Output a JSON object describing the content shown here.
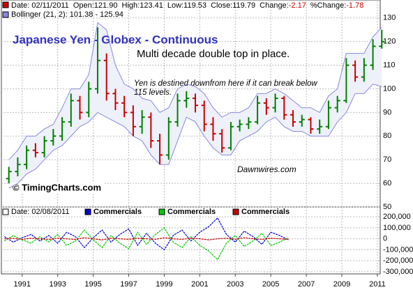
{
  "chart_data": [
    {
      "type": "ohlc",
      "title": "Japanese Yen - Globex - Continuous",
      "annotations": [
        "Multi decade double top in place.",
        "Yen is destined downfrom here if it can break below",
        "115 levels.",
        "Dawnwires.com",
        "© TimingCharts.com"
      ],
      "quote": [
        "Date: 02/11/2011",
        "Open:121.90",
        "High:123.41",
        "Low:119.53",
        "Close:119.79",
        "Change:"
      ],
      "change": "-2.17",
      "pct_change_label": "%Change:",
      "pct_change": "-1.78",
      "bands_label": "Bollinger (21, 2): 101.38 - 125.94",
      "x": [
        1990.0,
        1990.5,
        1991.0,
        1991.5,
        1992.0,
        1992.5,
        1993.0,
        1993.5,
        1994.0,
        1994.5,
        1995.0,
        1995.5,
        1996.0,
        1996.5,
        1997.0,
        1997.5,
        1998.0,
        1998.5,
        1999.0,
        1999.5,
        2000.0,
        2000.5,
        2001.0,
        2001.5,
        2002.0,
        2002.5,
        2003.0,
        2003.5,
        2004.0,
        2004.5,
        2005.0,
        2005.5,
        2006.0,
        2006.5,
        2007.0,
        2007.5,
        2008.0,
        2008.5,
        2009.0,
        2009.5,
        2010.0,
        2010.5,
        2011.0
      ],
      "open": [
        62,
        65,
        68,
        74,
        73,
        78,
        80,
        86,
        95,
        90,
        100,
        112,
        98,
        94,
        90,
        84,
        88,
        78,
        72,
        86,
        95,
        96,
        93,
        85,
        81,
        75,
        84,
        85,
        86,
        94,
        92,
        96,
        89,
        86,
        87,
        83,
        84,
        92,
        95,
        110,
        105,
        110,
        118
      ],
      "high": [
        67,
        71,
        76,
        77,
        80,
        83,
        88,
        98,
        97,
        103,
        126,
        115,
        100,
        97,
        93,
        91,
        90,
        81,
        88,
        98,
        99,
        98,
        95,
        88,
        83,
        86,
        87,
        88,
        97,
        96,
        98,
        97,
        91,
        89,
        88,
        87,
        95,
        97,
        113,
        112,
        113,
        121,
        125
      ],
      "low": [
        60,
        63,
        66,
        71,
        71,
        76,
        78,
        84,
        87,
        88,
        98,
        95,
        91,
        88,
        80,
        81,
        75,
        68,
        70,
        84,
        92,
        90,
        82,
        78,
        73,
        74,
        82,
        83,
        85,
        89,
        90,
        87,
        84,
        84,
        81,
        81,
        83,
        90,
        94,
        103,
        103,
        108,
        117
      ],
      "close": [
        65,
        68,
        74,
        73,
        78,
        80,
        86,
        95,
        90,
        100,
        112,
        98,
        94,
        90,
        84,
        88,
        78,
        72,
        86,
        95,
        96,
        93,
        85,
        81,
        75,
        84,
        85,
        86,
        94,
        92,
        96,
        89,
        86,
        87,
        83,
        84,
        92,
        95,
        110,
        105,
        110,
        118,
        120
      ],
      "up_color": "#008000",
      "down_color": "#cc0000",
      "bands": {
        "color": "#8888dd",
        "fill": "#eef1fa",
        "upper": [
          70,
          74,
          80,
          80,
          83,
          85,
          92,
          100,
          100,
          106,
          128,
          125,
          110,
          102,
          100,
          96,
          95,
          90,
          92,
          100,
          102,
          101,
          98,
          92,
          88,
          90,
          90,
          92,
          98,
          98,
          100,
          98,
          95,
          92,
          92,
          90,
          97,
          100,
          115,
          115,
          115,
          122,
          126
        ],
        "lower": [
          58,
          60,
          64,
          66,
          70,
          74,
          76,
          80,
          84,
          86,
          90,
          88,
          86,
          84,
          80,
          78,
          72,
          68,
          68,
          78,
          88,
          86,
          80,
          75,
          72,
          72,
          78,
          80,
          82,
          86,
          88,
          84,
          82,
          82,
          80,
          80,
          80,
          86,
          90,
          98,
          98,
          102,
          101
        ]
      },
      "xlim": [
        1989.83,
        2011.16
      ],
      "ylim": [
        50,
        137
      ],
      "yticks": [
        50,
        60,
        70,
        80,
        90,
        100,
        110,
        120,
        130
      ],
      "grid": true
    },
    {
      "type": "line",
      "legend_date": "Date: 02/08/2011",
      "x": [
        1990.0,
        1990.5,
        1991.0,
        1991.5,
        1992.0,
        1992.5,
        1993.0,
        1993.5,
        1994.0,
        1994.5,
        1995.0,
        1995.5,
        1996.0,
        1996.5,
        1997.0,
        1997.5,
        1998.0,
        1998.5,
        1999.0,
        1999.5,
        2000.0,
        2000.5,
        2001.0,
        2001.5,
        2002.0,
        2002.5,
        2003.0,
        2003.5,
        2004.0,
        2004.5,
        2005.0,
        2005.5,
        2006.0
      ],
      "series": [
        {
          "name": "Commercials",
          "color": "#0000cc",
          "values": [
            20000,
            -30000,
            10000,
            40000,
            -20000,
            30000,
            -40000,
            60000,
            20000,
            -80000,
            10000,
            80000,
            -30000,
            40000,
            90000,
            -60000,
            50000,
            -40000,
            -100000,
            30000,
            80000,
            -20000,
            60000,
            110000,
            190000,
            40000,
            -30000,
            70000,
            20000,
            -50000,
            60000,
            30000,
            -10000
          ]
        },
        {
          "name": "Commercials",
          "color": "#00cc00",
          "values": [
            -20000,
            30000,
            -10000,
            -40000,
            20000,
            -30000,
            40000,
            -60000,
            -20000,
            80000,
            -10000,
            -80000,
            30000,
            -40000,
            -90000,
            60000,
            -50000,
            40000,
            100000,
            -30000,
            -80000,
            20000,
            -60000,
            -110000,
            -190000,
            -40000,
            30000,
            -70000,
            -20000,
            50000,
            -60000,
            -30000,
            10000
          ]
        },
        {
          "name": "Commercials",
          "color": "#cc0000",
          "values": [
            0,
            5000,
            -5000,
            5000,
            0,
            -5000,
            5000,
            0,
            -5000,
            10000,
            0,
            -10000,
            5000,
            0,
            -5000,
            5000,
            0,
            -5000,
            10000,
            0,
            -5000,
            5000,
            0,
            -10000,
            0,
            5000,
            -5000,
            10000,
            0,
            -5000,
            5000,
            0,
            -5000
          ]
        }
      ],
      "xlim": [
        1989.83,
        2011.16
      ],
      "ylim": [
        -320000,
        290000
      ],
      "yticks": [
        {
          "value": 200000,
          "label": "200,000"
        },
        {
          "value": 100000,
          "label": "100,000"
        },
        0,
        {
          "value": -100000,
          "label": "-100,000"
        },
        {
          "value": -200000,
          "label": "-200,000"
        },
        {
          "value": -300000,
          "label": "-300,000"
        }
      ],
      "xticks": [
        1991,
        1993,
        1995,
        1997,
        1999,
        2001,
        2003,
        2005,
        2007,
        2009,
        2011
      ],
      "grid": true
    }
  ]
}
